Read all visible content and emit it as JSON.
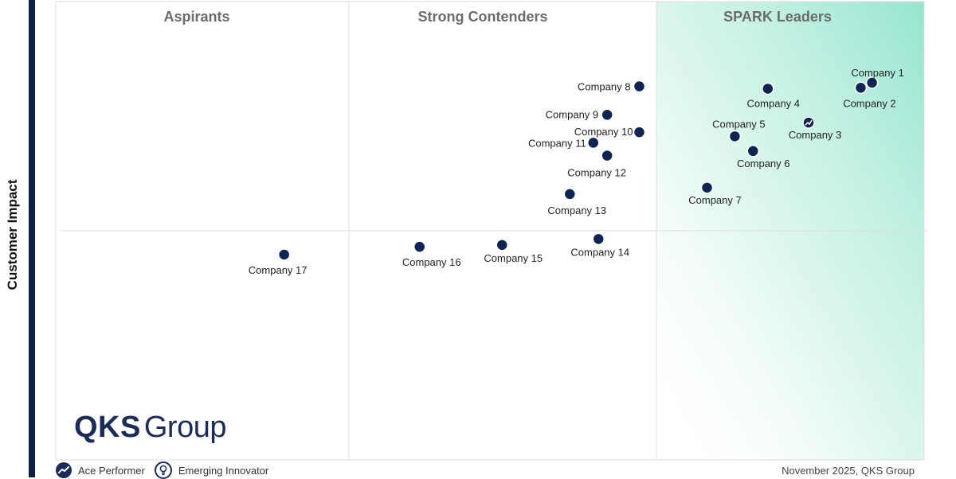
{
  "chart_data": {
    "type": "scatter",
    "title": "",
    "ylabel": "Customer Impact",
    "xlabel": "",
    "quadrants": [
      "Aspirants",
      "Strong Contenders",
      "SPARK Leaders"
    ],
    "points": [
      {
        "name": "Company 1",
        "x": 94.0,
        "y": 82.3,
        "badge": "none"
      },
      {
        "name": "Company 2",
        "x": 92.7,
        "y": 81.2,
        "badge": "none"
      },
      {
        "name": "Company 3",
        "x": 86.7,
        "y": 73.6,
        "badge": "ace"
      },
      {
        "name": "Company 4",
        "x": 82.0,
        "y": 81.0,
        "badge": "none"
      },
      {
        "name": "Company 5",
        "x": 78.2,
        "y": 70.6,
        "badge": "none"
      },
      {
        "name": "Company 6",
        "x": 80.3,
        "y": 67.4,
        "badge": "none"
      },
      {
        "name": "Company 7",
        "x": 75.0,
        "y": 59.4,
        "badge": "none"
      },
      {
        "name": "Company 8",
        "x": 67.2,
        "y": 81.5,
        "badge": "none"
      },
      {
        "name": "Company 9",
        "x": 63.5,
        "y": 75.3,
        "badge": "none"
      },
      {
        "name": "Company 10",
        "x": 67.2,
        "y": 71.5,
        "badge": "none"
      },
      {
        "name": "Company 11",
        "x": 61.9,
        "y": 69.2,
        "badge": "none"
      },
      {
        "name": "Company 12",
        "x": 63.5,
        "y": 66.4,
        "badge": "none"
      },
      {
        "name": "Company 13",
        "x": 59.2,
        "y": 58.0,
        "badge": "none"
      },
      {
        "name": "Company 14",
        "x": 62.5,
        "y": 48.2,
        "badge": "none"
      },
      {
        "name": "Company 15",
        "x": 51.4,
        "y": 46.9,
        "badge": "none"
      },
      {
        "name": "Company 16",
        "x": 41.9,
        "y": 46.5,
        "badge": "none"
      },
      {
        "name": "Company 17",
        "x": 26.3,
        "y": 44.8,
        "badge": "none"
      }
    ],
    "legend": [
      {
        "label": "Ace Performer",
        "icon": "ace-performer-icon"
      },
      {
        "label": "Emerging Innovator",
        "icon": "emerging-innovator-icon"
      }
    ],
    "colors": {
      "point": "#0e2452",
      "leader_gradient": "#8fe3cc"
    }
  },
  "branding": {
    "logo_main": "QKS",
    "logo_sub": "Group"
  },
  "footer": {
    "text": "November 2025, QKS Group"
  }
}
